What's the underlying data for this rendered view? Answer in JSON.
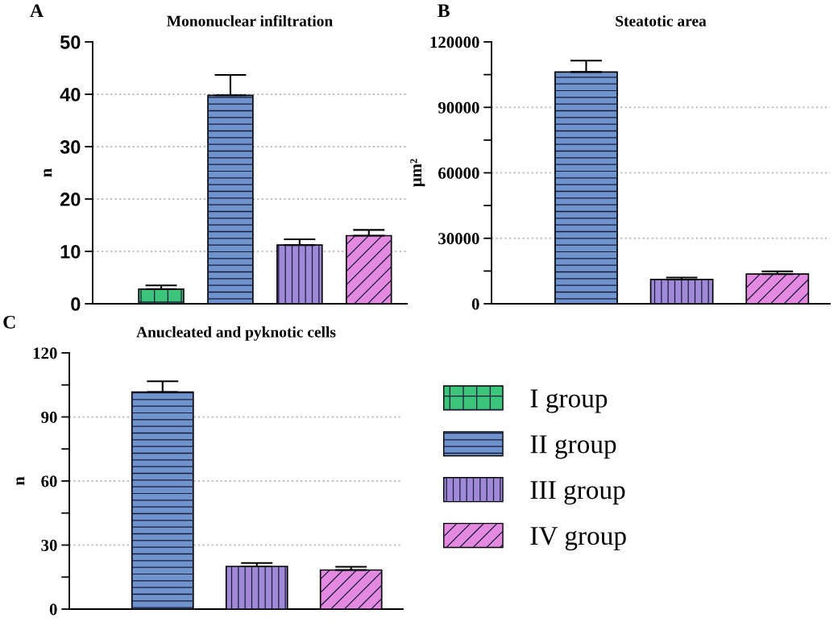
{
  "chart_data": [
    {
      "type": "bar",
      "title": "Mononuclear infiltration",
      "ylabel": "n",
      "annotations": [
        "A"
      ],
      "categories": [
        null,
        null,
        null,
        null
      ],
      "ylim": [
        0,
        50
      ],
      "yticks": [
        0,
        10,
        20,
        30,
        40,
        50
      ],
      "grid": "y",
      "series": [
        {
          "color": "#3cc47a",
          "values": [
            2.8,
            null,
            null,
            null
          ],
          "errors": [
            0.7,
            null,
            null,
            null
          ]
        },
        {
          "color": "#6f93cc",
          "values": [
            null,
            39.8,
            null,
            null
          ],
          "errors": [
            null,
            3.9,
            null,
            null
          ]
        },
        {
          "color": "#a08ad8",
          "values": [
            null,
            null,
            11.2,
            null
          ],
          "errors": [
            null,
            null,
            1.1,
            null
          ]
        },
        {
          "color": "#e38ae0",
          "values": [
            null,
            null,
            null,
            13.0
          ],
          "errors": [
            null,
            null,
            null,
            1.1
          ]
        }
      ]
    },
    {
      "type": "bar",
      "title": "Steatotic area",
      "ylabel": "μm²",
      "annotations": [
        "B"
      ],
      "categories": [
        null,
        null,
        null
      ],
      "ylim": [
        0,
        120000
      ],
      "yticks": [
        0,
        {
          "value": 15000,
          "label": null
        },
        30000,
        {
          "value": 45000,
          "label": null
        },
        60000,
        {
          "value": 75000,
          "label": null
        },
        90000,
        {
          "value": 105000,
          "label": null
        },
        120000
      ],
      "grid": "y",
      "values": [
        106200,
        11100,
        13600
      ],
      "errors": [
        5200,
        900,
        1200
      ],
      "colors": [
        "#6f93cc",
        "#a08ad8",
        "#e38ae0"
      ]
    },
    {
      "type": "bar",
      "title": "Anucleated and pyknotic cells",
      "ylabel": "n",
      "annotations": [
        "C"
      ],
      "categories": [
        null,
        null,
        null
      ],
      "ylim": [
        0,
        120
      ],
      "yticks": [
        0,
        {
          "value": 15,
          "label": null
        },
        30,
        {
          "value": 45,
          "label": null
        },
        60,
        {
          "value": 75,
          "label": null
        },
        90,
        {
          "value": 105,
          "label": null
        },
        120
      ],
      "grid": "y",
      "legend": "right",
      "series": [
        {
          "name": "I group",
          "color": "#3cc47a",
          "values": [
            null,
            null,
            null
          ],
          "errors": [
            null,
            null,
            null
          ]
        },
        {
          "name": "II group",
          "color": "#6f93cc",
          "values": [
            101.7,
            null,
            null
          ],
          "errors": [
            5.0,
            null,
            null
          ]
        },
        {
          "name": "III group",
          "color": "#a08ad8",
          "values": [
            null,
            20.0,
            null
          ],
          "errors": [
            null,
            1.6,
            null
          ]
        },
        {
          "name": "IV group",
          "color": "#e38ae0",
          "values": [
            null,
            null,
            18.3
          ],
          "errors": [
            null,
            null,
            1.5
          ]
        }
      ]
    }
  ]
}
